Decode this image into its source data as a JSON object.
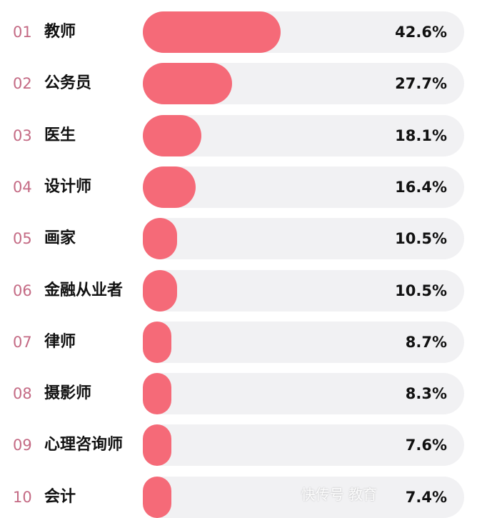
{
  "chart_data": {
    "type": "bar",
    "orientation": "horizontal",
    "xlim": [
      0,
      100
    ],
    "unit": "%",
    "colors": {
      "fill": "#f56a78",
      "track": "#f1f1f3",
      "rank": "#c46a84"
    },
    "items": [
      {
        "rank": "01",
        "label": "教师",
        "value": 42.6,
        "value_label": "42.6%"
      },
      {
        "rank": "02",
        "label": "公务员",
        "value": 27.7,
        "value_label": "27.7%"
      },
      {
        "rank": "03",
        "label": "医生",
        "value": 18.1,
        "value_label": "18.1%"
      },
      {
        "rank": "04",
        "label": "设计师",
        "value": 16.4,
        "value_label": "16.4%"
      },
      {
        "rank": "05",
        "label": "画家",
        "value": 10.5,
        "value_label": "10.5%"
      },
      {
        "rank": "06",
        "label": "金融从业者",
        "value": 10.5,
        "value_label": "10.5%"
      },
      {
        "rank": "07",
        "label": "律师",
        "value": 8.7,
        "value_label": "8.7%"
      },
      {
        "rank": "08",
        "label": "摄影师",
        "value": 8.3,
        "value_label": "8.3%"
      },
      {
        "rank": "09",
        "label": "心理咨询师",
        "value": 7.6,
        "value_label": "7.6%"
      },
      {
        "rank": "10",
        "label": "会计",
        "value": 7.4,
        "value_label": "7.4%"
      }
    ]
  },
  "watermark": "快传号 教育"
}
